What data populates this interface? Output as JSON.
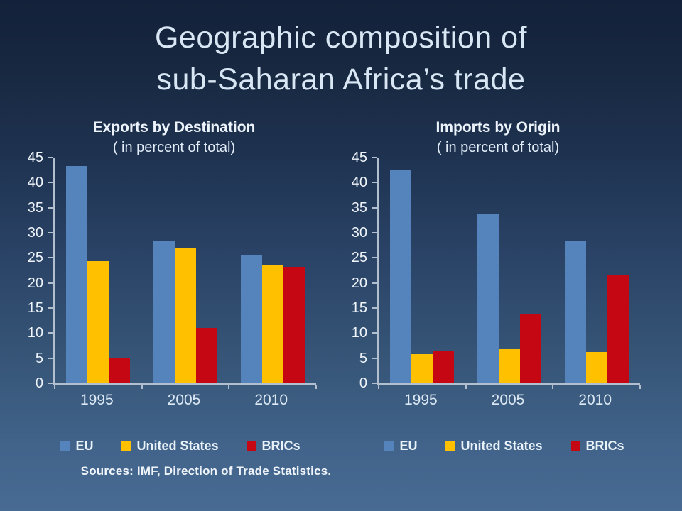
{
  "slide": {
    "title_line1": "Geographic composition of",
    "title_line2": "sub-Saharan Africa’s trade",
    "source": "Sources: IMF, Direction of Trade Statistics."
  },
  "colors": {
    "eu": "#5584bd",
    "united_states": "#ffc000",
    "brics": "#c40712",
    "axis": "#b2bfce",
    "background_top": "#13213a",
    "background_bottom": "#486b93",
    "title_text": "#d9e7f5"
  },
  "chart_data": [
    {
      "type": "bar",
      "title": "Exports by Destination",
      "subtitle": "( in percent of total)",
      "categories": [
        "1995",
        "2005",
        "2010"
      ],
      "series": [
        {
          "name": "EU",
          "color": "#5584bd",
          "values": [
            43.3,
            28.3,
            25.6
          ]
        },
        {
          "name": "United States",
          "color": "#ffc000",
          "values": [
            24.4,
            27.0,
            23.7
          ]
        },
        {
          "name": "BRICs",
          "color": "#c40712",
          "values": [
            5.1,
            11.1,
            23.2
          ]
        }
      ],
      "xlabel": "",
      "ylabel": "",
      "ylim": [
        0,
        45
      ],
      "ytick_step": 5,
      "grid": false,
      "legend_position": "bottom"
    },
    {
      "type": "bar",
      "title": "Imports by Origin",
      "subtitle": "( in percent of total)",
      "categories": [
        "1995",
        "2005",
        "2010"
      ],
      "series": [
        {
          "name": "EU",
          "color": "#5584bd",
          "values": [
            42.5,
            33.7,
            28.4
          ]
        },
        {
          "name": "United States",
          "color": "#ffc000",
          "values": [
            5.8,
            6.8,
            6.2
          ]
        },
        {
          "name": "BRICs",
          "color": "#c40712",
          "values": [
            6.3,
            13.8,
            21.7
          ]
        }
      ],
      "xlabel": "",
      "ylabel": "",
      "ylim": [
        0,
        45
      ],
      "ytick_step": 5,
      "grid": false,
      "legend_position": "bottom"
    }
  ]
}
